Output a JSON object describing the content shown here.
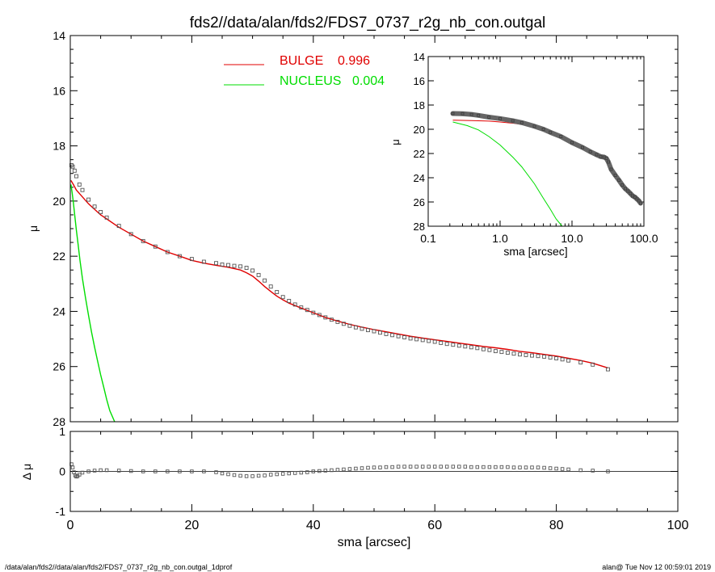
{
  "title": "fds2//data/alan/fds2/FDS7_0737_r2g_nb_con.outgal",
  "footer": {
    "left": "/data/alan/fds2//data/alan/fds2/FDS7_0737_r2g_nb_con.outgal_1dprof",
    "right": "alan@  Tue Nov 12 00:59:01 2019"
  },
  "colors": {
    "bulge": "#e00000",
    "nucleus": "#00dd00",
    "data": "#555555",
    "axes": "#000000"
  },
  "legend": {
    "placement": "top-right",
    "items": [
      {
        "name": "BULGE",
        "value": "0.996",
        "color": "#e00000"
      },
      {
        "name": "NUCLEUS",
        "value": "0.004",
        "color": "#00dd00"
      }
    ]
  },
  "chart_data": [
    {
      "id": "main",
      "type": "line",
      "xlabel": "sma [arcsec]",
      "ylabel": "μ",
      "xlim": [
        0,
        100
      ],
      "ylim": [
        28,
        14
      ],
      "y_inverted": true,
      "xticks": [
        "0",
        "20",
        "40",
        "60",
        "80",
        "100"
      ],
      "yticks": [
        "14",
        "16",
        "18",
        "20",
        "22",
        "24",
        "26",
        "28"
      ],
      "observed_profile": {
        "x": [
          0.2,
          0.4,
          0.7,
          1.0,
          1.5,
          2,
          3,
          4,
          5,
          6,
          8,
          10,
          12,
          14,
          16,
          18,
          20,
          22,
          24,
          25,
          26,
          27,
          28,
          29,
          30,
          31,
          32,
          33,
          34,
          35,
          36,
          37,
          38,
          39,
          40,
          41,
          42,
          43,
          44,
          45,
          46,
          47,
          48,
          49,
          50,
          51,
          52,
          53,
          54,
          55,
          56,
          57,
          58,
          59,
          60,
          61,
          62,
          63,
          64,
          65,
          66,
          67,
          68,
          69,
          70,
          71,
          72,
          73,
          74,
          75,
          76,
          77,
          78,
          79,
          80,
          81,
          82,
          84,
          86,
          88.5
        ],
        "y": [
          18.7,
          18.75,
          18.9,
          19.1,
          19.4,
          19.6,
          19.95,
          20.2,
          20.4,
          20.6,
          20.9,
          21.2,
          21.45,
          21.65,
          21.85,
          22.0,
          22.1,
          22.2,
          22.25,
          22.3,
          22.32,
          22.35,
          22.37,
          22.42,
          22.52,
          22.68,
          22.88,
          23.1,
          23.3,
          23.48,
          23.62,
          23.75,
          23.86,
          23.95,
          24.05,
          24.13,
          24.22,
          24.3,
          24.38,
          24.45,
          24.52,
          24.58,
          24.63,
          24.68,
          24.72,
          24.77,
          24.82,
          24.86,
          24.9,
          24.94,
          24.98,
          25.01,
          25.04,
          25.07,
          25.1,
          25.14,
          25.18,
          25.21,
          25.24,
          25.27,
          25.3,
          25.33,
          25.37,
          25.4,
          25.44,
          25.47,
          25.5,
          25.53,
          25.56,
          25.58,
          25.6,
          25.62,
          25.64,
          25.67,
          25.7,
          25.74,
          25.78,
          25.85,
          25.93,
          26.1
        ]
      },
      "series": [
        {
          "name": "BULGE",
          "color": "#e00000",
          "x": [
            0.1,
            0.5,
            1,
            2,
            3,
            4,
            5,
            6,
            8,
            10,
            12,
            14,
            16,
            18,
            20,
            22,
            24,
            26,
            28,
            29,
            30,
            31,
            32,
            33,
            34,
            35,
            36,
            38,
            40,
            42,
            44,
            46,
            48,
            50,
            52,
            54,
            56,
            58,
            60,
            62,
            64,
            66,
            68,
            70,
            72,
            74,
            76,
            78,
            80,
            82,
            84,
            86,
            88.5
          ],
          "y": [
            19.25,
            19.4,
            19.6,
            19.85,
            20.1,
            20.3,
            20.5,
            20.65,
            20.95,
            21.2,
            21.45,
            21.65,
            21.85,
            22.0,
            22.15,
            22.25,
            22.33,
            22.4,
            22.5,
            22.6,
            22.72,
            22.9,
            23.1,
            23.28,
            23.45,
            23.58,
            23.7,
            23.88,
            24.05,
            24.22,
            24.35,
            24.47,
            24.57,
            24.66,
            24.74,
            24.82,
            24.9,
            24.97,
            25.03,
            25.09,
            25.15,
            25.21,
            25.27,
            25.32,
            25.38,
            25.45,
            25.5,
            25.56,
            25.62,
            25.7,
            25.78,
            25.88,
            26.05
          ]
        },
        {
          "name": "NUCLEUS",
          "color": "#00dd00",
          "x": [
            0.1,
            0.3,
            0.5,
            0.8,
            1.0,
            1.3,
            1.6,
            2.0,
            2.5,
            3.0,
            3.5,
            4.0,
            4.5,
            5.0,
            5.5,
            6.0,
            6.5,
            7.3
          ],
          "y": [
            19.4,
            19.7,
            20.05,
            20.65,
            21.05,
            21.6,
            22.15,
            22.8,
            23.5,
            24.15,
            24.75,
            25.3,
            25.8,
            26.3,
            26.75,
            27.2,
            27.6,
            28.0
          ]
        }
      ]
    },
    {
      "id": "residual",
      "type": "scatter",
      "xlabel": "sma [arcsec]",
      "ylabel": "Δ μ",
      "xlim": [
        0,
        100
      ],
      "ylim": [
        -1,
        1
      ],
      "xticks": [
        "0",
        "20",
        "40",
        "60",
        "80",
        "100"
      ],
      "yticks": [
        "1",
        "0",
        "-1"
      ],
      "points": {
        "x": [
          0.2,
          0.4,
          0.6,
          0.8,
          1.0,
          1.2,
          1.5,
          2,
          3,
          4,
          5,
          6,
          8,
          10,
          12,
          14,
          16,
          18,
          20,
          22,
          24,
          25,
          26,
          27,
          28,
          29,
          30,
          31,
          32,
          33,
          34,
          35,
          36,
          37,
          38,
          39,
          40,
          41,
          42,
          43,
          44,
          45,
          46,
          47,
          48,
          49,
          50,
          51,
          52,
          53,
          54,
          55,
          56,
          57,
          58,
          59,
          60,
          61,
          62,
          63,
          64,
          65,
          66,
          67,
          68,
          69,
          70,
          71,
          72,
          73,
          74,
          75,
          76,
          77,
          78,
          79,
          80,
          81,
          82,
          84,
          86,
          88.5
        ],
        "y": [
          0.18,
          0.1,
          -0.02,
          -0.1,
          -0.13,
          -0.12,
          -0.08,
          -0.03,
          0.0,
          0.02,
          0.03,
          0.03,
          0.02,
          0.01,
          0.0,
          0.0,
          0.0,
          0.0,
          0.0,
          0.0,
          -0.02,
          -0.05,
          -0.07,
          -0.09,
          -0.11,
          -0.12,
          -0.12,
          -0.11,
          -0.1,
          -0.08,
          -0.07,
          -0.06,
          -0.05,
          -0.04,
          -0.03,
          -0.02,
          0.0,
          0.01,
          0.02,
          0.03,
          0.04,
          0.05,
          0.06,
          0.07,
          0.08,
          0.09,
          0.1,
          0.1,
          0.11,
          0.11,
          0.12,
          0.12,
          0.12,
          0.12,
          0.12,
          0.12,
          0.12,
          0.12,
          0.12,
          0.12,
          0.12,
          0.12,
          0.11,
          0.11,
          0.11,
          0.11,
          0.11,
          0.11,
          0.11,
          0.1,
          0.1,
          0.1,
          0.1,
          0.1,
          0.09,
          0.08,
          0.07,
          0.06,
          0.05,
          0.03,
          0.02,
          0.0
        ]
      }
    },
    {
      "id": "inset",
      "type": "line",
      "xscale": "log",
      "xlabel": "sma [arcsec]",
      "ylabel": "μ",
      "xlim": [
        0.1,
        100
      ],
      "ylim": [
        28,
        14
      ],
      "y_inverted": true,
      "xticks": [
        "0.1",
        "1.0",
        "10.0",
        "100.0"
      ],
      "yticks": [
        "14",
        "16",
        "18",
        "20",
        "22",
        "24",
        "26",
        "28"
      ],
      "observed_profile": {
        "x": [
          0.22,
          0.3,
          0.4,
          0.5,
          0.7,
          1.0,
          1.5,
          2,
          3,
          4,
          5,
          7,
          10,
          14,
          18,
          22,
          25,
          28,
          30,
          32,
          35,
          40,
          45,
          50,
          55,
          60,
          65,
          70,
          75,
          80,
          85,
          90
        ],
        "y": [
          18.7,
          18.72,
          18.77,
          18.85,
          19.0,
          19.12,
          19.3,
          19.45,
          19.75,
          20.0,
          20.25,
          20.6,
          21.1,
          21.5,
          21.85,
          22.1,
          22.25,
          22.3,
          22.4,
          22.7,
          23.3,
          23.8,
          24.2,
          24.6,
          24.9,
          25.1,
          25.3,
          25.5,
          25.6,
          25.75,
          25.9,
          26.1
        ]
      },
      "series": [
        {
          "name": "BULGE",
          "color": "#e00000",
          "x": [
            0.22,
            0.4,
            0.7,
            1.0,
            1.5,
            2,
            3,
            5,
            7,
            10,
            15,
            20,
            25,
            30,
            35
          ],
          "y": [
            19.25,
            19.28,
            19.33,
            19.4,
            19.5,
            19.6,
            19.8,
            20.2,
            20.55,
            21.05,
            21.6,
            21.95,
            22.2,
            22.45,
            22.9
          ]
        },
        {
          "name": "NUCLEUS",
          "color": "#00dd00",
          "x": [
            0.22,
            0.35,
            0.5,
            0.7,
            1.0,
            1.5,
            2.0,
            3.0,
            4.0,
            5.0,
            6.0,
            7.3
          ],
          "y": [
            19.4,
            19.7,
            20.05,
            20.6,
            21.3,
            22.3,
            23.1,
            24.5,
            25.7,
            26.6,
            27.4,
            28.0
          ]
        }
      ]
    }
  ]
}
